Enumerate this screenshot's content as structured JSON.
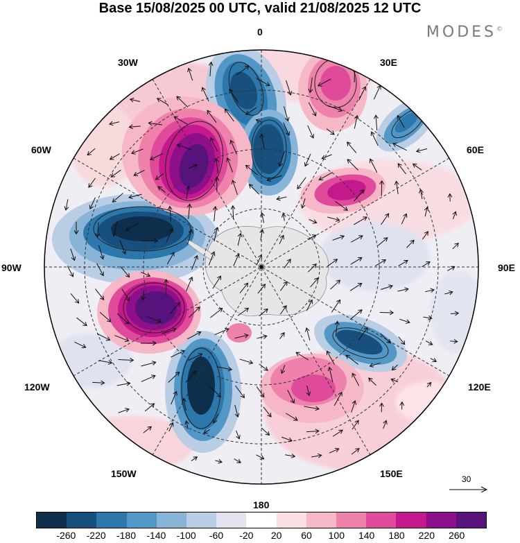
{
  "title": "Base 15/08/2025 00 UTC, valid 21/08/2025 12 UTC",
  "brand": "MODES",
  "brand_mark": "©",
  "lon_labels": {
    "top": "0",
    "top_left": "30W",
    "top_right": "30E",
    "left_upper": "60W",
    "right_upper": "60E",
    "left": "90W",
    "right": "90E",
    "left_lower": "120W",
    "right_lower": "120E",
    "bottom_left": "150W",
    "bottom_right": "150E",
    "bottom": "180"
  },
  "reference_vector": "30",
  "colorbar": {
    "colors": [
      "#0d2f4c",
      "#17507c",
      "#2c77ab",
      "#5297c5",
      "#88b4d8",
      "#b9cde4",
      "#e3e3f0",
      "#ffffff",
      "#fbe0e3",
      "#f6b8c7",
      "#ef82ac",
      "#df4a9b",
      "#c4198d",
      "#8e0f8a",
      "#58127d"
    ],
    "tick_labels": [
      "-260",
      "-220",
      "-180",
      "-140",
      "-100",
      "-60",
      "-20",
      "20",
      "60",
      "100",
      "140",
      "180",
      "220",
      "260"
    ]
  }
}
